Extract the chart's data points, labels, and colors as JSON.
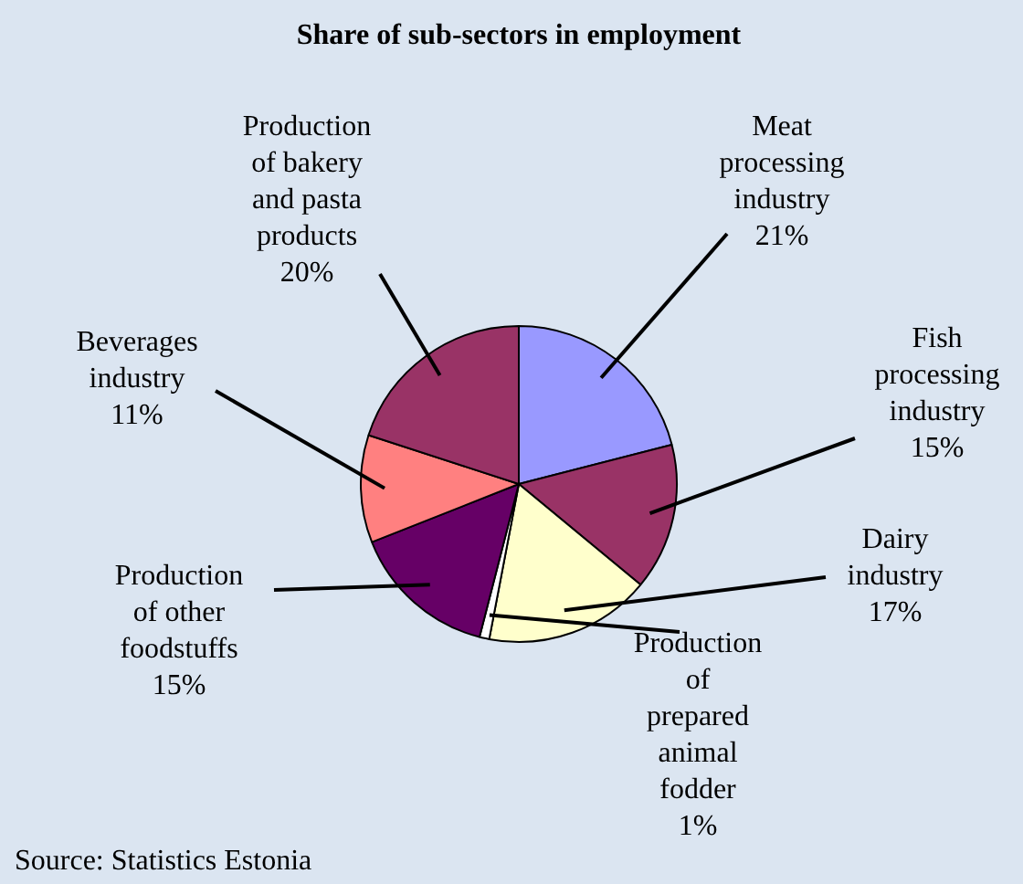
{
  "chart_data": {
    "type": "pie",
    "title": "Share of sub-sectors in employment",
    "categories": [
      "Meat processing industry",
      "Fish processing industry",
      "Dairy industry",
      "Production of prepared animal fodder",
      "Production of other foodstuffs",
      "Beverages industry",
      "Production of bakery and pasta products"
    ],
    "values": [
      21,
      15,
      17,
      1,
      15,
      11,
      20
    ],
    "value_labels": [
      "21%",
      "15%",
      "17%",
      "1%",
      "15%",
      "11%",
      "20%"
    ],
    "colors": [
      "#9999ff",
      "#993366",
      "#ffffcc",
      "#ffffff",
      "#660066",
      "#ff8080",
      "#993366"
    ],
    "annotations": [
      "Source: Statistics Estonia"
    ]
  }
}
